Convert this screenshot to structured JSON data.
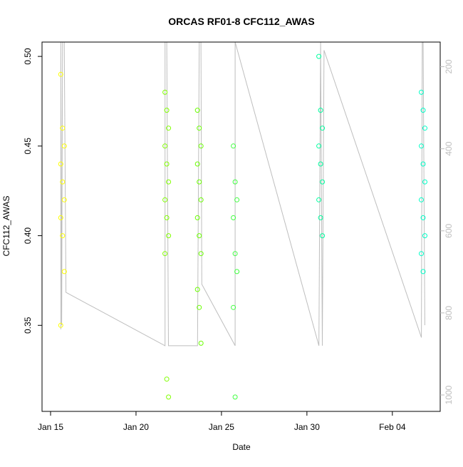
{
  "chart_data": {
    "type": "scatter",
    "title": "ORCAS RF01-8 CFC112_AWAS",
    "xlabel": "Date",
    "ylabel": "CFC112_AWAS",
    "x_ticks": [
      "Jan 15",
      "Jan 20",
      "Jan 25",
      "Jan 30",
      "Feb 04"
    ],
    "x_tick_days": [
      15,
      20,
      25,
      30,
      35
    ],
    "xlim_days": [
      14.5,
      37.8
    ],
    "y_ticks": [
      0.35,
      0.4,
      0.45,
      0.5
    ],
    "ylim": [
      0.302,
      0.508
    ],
    "y2_ticks": [
      200,
      400,
      600,
      800,
      1000
    ],
    "y2lim": [
      1040,
      140
    ],
    "grid": false,
    "colors": {
      "flight_track": "#bebebe",
      "rf01": "#ffff00",
      "rf02": "#80ff00",
      "rf03": "#6aff00",
      "rf04": "#40ff40",
      "rf05": "#00ff9f",
      "rf06": "#00ffc8"
    },
    "series": [
      {
        "color_key": "rf01",
        "day": 15.7,
        "values": [
          0.49,
          0.46,
          0.45,
          0.44,
          0.43,
          0.42,
          0.41,
          0.4,
          0.38,
          0.35
        ]
      },
      {
        "color_key": "rf02",
        "day": 21.8,
        "values": [
          0.48,
          0.47,
          0.46,
          0.45,
          0.44,
          0.43,
          0.42,
          0.41,
          0.4,
          0.39,
          0.32,
          0.31
        ]
      },
      {
        "color_key": "rf03",
        "day": 23.7,
        "values": [
          0.47,
          0.46,
          0.45,
          0.44,
          0.43,
          0.42,
          0.41,
          0.4,
          0.39,
          0.37,
          0.36,
          0.34
        ]
      },
      {
        "color_key": "rf04",
        "day": 25.8,
        "values": [
          0.45,
          0.43,
          0.42,
          0.41,
          0.39,
          0.38,
          0.36,
          0.31
        ]
      },
      {
        "color_key": "rf05",
        "day": 30.8,
        "values": [
          0.5,
          0.47,
          0.46,
          0.45,
          0.44,
          0.43,
          0.42,
          0.41,
          0.4
        ]
      },
      {
        "color_key": "rf06",
        "day": 36.8,
        "values": [
          0.48,
          0.47,
          0.46,
          0.45,
          0.44,
          0.43,
          0.42,
          0.41,
          0.4,
          0.39,
          0.38
        ]
      }
    ],
    "flight_track": {
      "x_days": [
        15.6,
        15.6,
        15.65,
        15.7,
        15.8,
        15.9,
        21.7,
        21.7,
        21.8,
        21.9,
        23.6,
        23.7,
        23.8,
        23.85,
        25.8,
        25.8,
        30.7,
        30.8,
        30.9,
        31.0,
        36.7,
        36.75,
        36.8,
        36.9
      ],
      "alt": [
        840,
        140,
        830,
        140,
        140,
        750,
        880,
        140,
        140,
        880,
        880,
        140,
        140,
        730,
        880,
        140,
        880,
        140,
        880,
        160,
        860,
        140,
        140,
        830
      ]
    }
  }
}
